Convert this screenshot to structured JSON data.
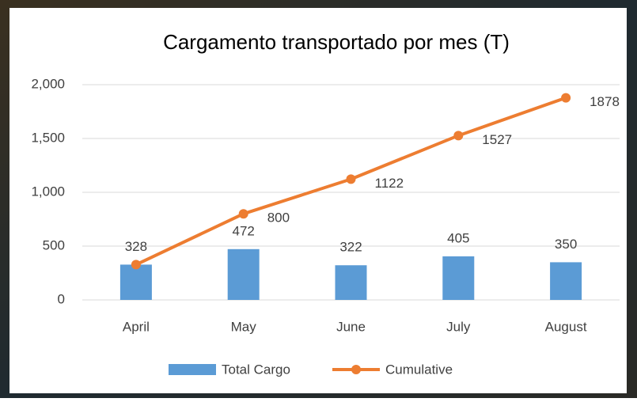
{
  "chart_data": {
    "type": "combo",
    "title": "Cargamento transportado por mes (T)",
    "categories": [
      "April",
      "May",
      "June",
      "July",
      "August"
    ],
    "series": [
      {
        "name": "Total Cargo",
        "type": "bar",
        "color": "#5b9bd5",
        "values": [
          328,
          472,
          322,
          405,
          350
        ]
      },
      {
        "name": "Cumulative",
        "type": "line",
        "color": "#ed7d31",
        "values": [
          328,
          800,
          1122,
          1527,
          1878
        ]
      }
    ],
    "ylim": [
      0,
      2000
    ],
    "yticks": [
      0,
      500,
      {
        "value": 1000,
        "label": "1,000"
      },
      {
        "value": 1500,
        "label": "1,500"
      },
      {
        "value": 2000,
        "label": "2,000"
      }
    ],
    "grid": true,
    "legend": "bottom"
  }
}
